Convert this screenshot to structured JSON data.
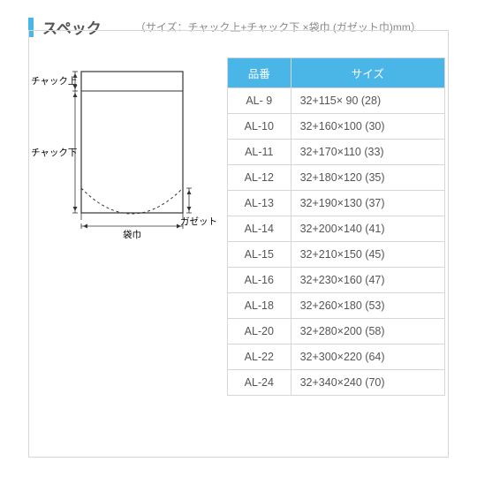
{
  "header": {
    "title": "スペック",
    "subtitle": "（サイズ：チャック上+チャック下 ×袋巾 (ガゼット巾)mm）"
  },
  "table": {
    "columns": [
      "品番",
      "サイズ"
    ],
    "rows": [
      [
        "AL- 9",
        "32+115× 90 (28)"
      ],
      [
        "AL-10",
        "32+160×100 (30)"
      ],
      [
        "AL-11",
        "32+170×110 (33)"
      ],
      [
        "AL-12",
        "32+180×120 (35)"
      ],
      [
        "AL-13",
        "32+190×130 (37)"
      ],
      [
        "AL-14",
        "32+200×140 (41)"
      ],
      [
        "AL-15",
        "32+210×150 (45)"
      ],
      [
        "AL-16",
        "32+230×160 (47)"
      ],
      [
        "AL-18",
        "32+260×180 (53)"
      ],
      [
        "AL-20",
        "32+280×200 (58)"
      ],
      [
        "AL-22",
        "32+300×220 (64)"
      ],
      [
        "AL-24",
        "32+340×240 (70)"
      ]
    ]
  },
  "diagram": {
    "labels": {
      "top": "チャック上",
      "bottom_left": "チャック下",
      "gusset": "ガゼット巾",
      "width": "袋巾"
    },
    "colors": {
      "stroke": "#333333",
      "fill": "#ffffff"
    }
  }
}
